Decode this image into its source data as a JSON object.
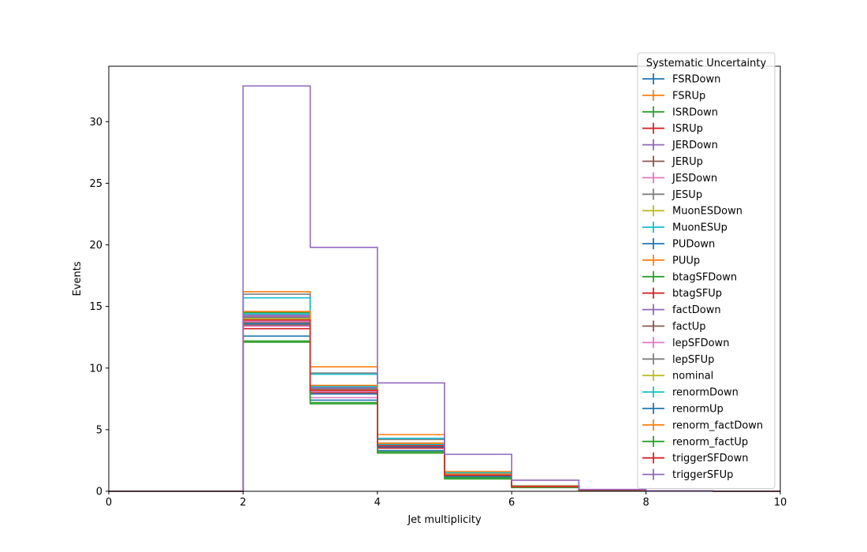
{
  "chart_data": {
    "type": "step-histogram",
    "xlabel": "Jet multiplicity",
    "ylabel": "Events",
    "xlim": [
      0,
      10
    ],
    "ylim": [
      0,
      34.5
    ],
    "x_ticks": [
      0,
      2,
      4,
      6,
      8,
      10
    ],
    "y_ticks": [
      0,
      5,
      10,
      15,
      20,
      25,
      30
    ],
    "grid": false,
    "legend": {
      "title": "Systematic Uncertainty",
      "placement": "top-right, outside axes"
    },
    "bin_edges": [
      0,
      1,
      2,
      3,
      4,
      5,
      6,
      7,
      8,
      9,
      10
    ],
    "series": [
      {
        "name": "FSRDown",
        "color": "#1f77b4",
        "values": [
          0,
          0,
          14.0,
          8.2,
          3.6,
          1.2,
          0.35,
          0.1,
          0.02,
          0,
          0
        ]
      },
      {
        "name": "FSRUp",
        "color": "#ff7f0e",
        "values": [
          0,
          0,
          16.2,
          10.1,
          4.6,
          1.6,
          0.45,
          0.12,
          0.03,
          0,
          0
        ]
      },
      {
        "name": "ISRDown",
        "color": "#2ca02c",
        "values": [
          0,
          0,
          14.5,
          8.5,
          3.9,
          1.4,
          0.4,
          0.1,
          0.02,
          0,
          0
        ]
      },
      {
        "name": "ISRUp",
        "color": "#d62728",
        "values": [
          0,
          0,
          13.2,
          8.0,
          3.5,
          1.2,
          0.35,
          0.1,
          0.02,
          0,
          0
        ]
      },
      {
        "name": "JERDown",
        "color": "#9467bd",
        "values": [
          0,
          0,
          14.2,
          8.3,
          3.8,
          1.3,
          0.4,
          0.1,
          0.02,
          0,
          0
        ]
      },
      {
        "name": "JERUp",
        "color": "#8c564b",
        "values": [
          0,
          0,
          13.7,
          8.1,
          3.7,
          1.3,
          0.38,
          0.1,
          0.02,
          0,
          0
        ]
      },
      {
        "name": "JESDown",
        "color": "#e377c2",
        "values": [
          0,
          0,
          13.4,
          7.6,
          3.3,
          1.1,
          0.32,
          0.08,
          0.02,
          0,
          0
        ]
      },
      {
        "name": "JESUp",
        "color": "#7f7f7f",
        "values": [
          0,
          0,
          16.0,
          9.6,
          4.2,
          1.5,
          0.42,
          0.11,
          0.03,
          0,
          0
        ]
      },
      {
        "name": "MuonESDown",
        "color": "#bcbd22",
        "values": [
          0,
          0,
          13.9,
          8.2,
          3.7,
          1.3,
          0.38,
          0.1,
          0.02,
          0,
          0
        ]
      },
      {
        "name": "MuonESUp",
        "color": "#17becf",
        "values": [
          0,
          0,
          15.7,
          9.5,
          4.3,
          1.5,
          0.42,
          0.11,
          0.03,
          0,
          0
        ]
      },
      {
        "name": "PUDown",
        "color": "#1f77b4",
        "values": [
          0,
          0,
          12.6,
          7.4,
          3.3,
          1.1,
          0.32,
          0.08,
          0.02,
          0,
          0
        ]
      },
      {
        "name": "PUUp",
        "color": "#ff7f0e",
        "values": [
          0,
          0,
          14.1,
          8.4,
          3.8,
          1.3,
          0.38,
          0.1,
          0.02,
          0,
          0
        ]
      },
      {
        "name": "btagSFDown",
        "color": "#2ca02c",
        "values": [
          0,
          0,
          12.2,
          7.1,
          3.1,
          1.0,
          0.3,
          0.08,
          0.02,
          0,
          0
        ]
      },
      {
        "name": "btagSFUp",
        "color": "#d62728",
        "values": [
          0,
          0,
          14.0,
          8.3,
          3.7,
          1.3,
          0.38,
          0.1,
          0.02,
          0,
          0
        ]
      },
      {
        "name": "factDown",
        "color": "#9467bd",
        "values": [
          0,
          0,
          14.3,
          8.4,
          3.8,
          1.3,
          0.39,
          0.1,
          0.02,
          0,
          0
        ]
      },
      {
        "name": "factUp",
        "color": "#8c564b",
        "values": [
          0,
          0,
          13.5,
          7.9,
          3.6,
          1.2,
          0.36,
          0.09,
          0.02,
          0,
          0
        ]
      },
      {
        "name": "lepSFDown",
        "color": "#e377c2",
        "values": [
          0,
          0,
          13.8,
          8.1,
          3.6,
          1.2,
          0.37,
          0.1,
          0.02,
          0,
          0
        ]
      },
      {
        "name": "lepSFUp",
        "color": "#7f7f7f",
        "values": [
          0,
          0,
          14.1,
          8.3,
          3.7,
          1.3,
          0.38,
          0.1,
          0.02,
          0,
          0
        ]
      },
      {
        "name": "nominal",
        "color": "#bcbd22",
        "values": [
          0,
          0,
          14.0,
          8.2,
          3.7,
          1.3,
          0.38,
          0.1,
          0.02,
          0,
          0
        ]
      },
      {
        "name": "renormDown",
        "color": "#17becf",
        "values": [
          0,
          0,
          14.4,
          8.5,
          3.8,
          1.3,
          0.39,
          0.1,
          0.02,
          0,
          0
        ]
      },
      {
        "name": "renormUp",
        "color": "#1f77b4",
        "values": [
          0,
          0,
          13.6,
          7.9,
          3.6,
          1.2,
          0.36,
          0.09,
          0.02,
          0,
          0
        ]
      },
      {
        "name": "renorm_factDown",
        "color": "#ff7f0e",
        "values": [
          0,
          0,
          14.6,
          8.6,
          3.9,
          1.4,
          0.4,
          0.1,
          0.02,
          0,
          0
        ]
      },
      {
        "name": "renorm_factUp",
        "color": "#2ca02c",
        "values": [
          0,
          0,
          12.1,
          7.2,
          3.2,
          1.1,
          0.31,
          0.08,
          0.02,
          0,
          0
        ]
      },
      {
        "name": "triggerSFDown",
        "color": "#d62728",
        "values": [
          0,
          0,
          13.9,
          8.2,
          3.7,
          1.3,
          0.37,
          0.1,
          0.02,
          0,
          0
        ]
      },
      {
        "name": "triggerSFUp",
        "color": "#9467bd",
        "values": [
          0,
          0,
          32.9,
          19.8,
          8.8,
          3.0,
          0.9,
          0.15,
          0.04,
          0,
          0
        ]
      }
    ]
  }
}
